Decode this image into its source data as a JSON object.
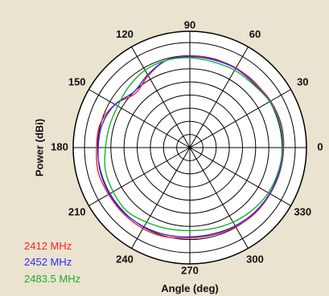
{
  "chart_data": {
    "type": "polar-line",
    "xlabel": "Angle (deg)",
    "ylabel": "Power (dBi)",
    "angle_ticks": [
      "0",
      "30",
      "60",
      "90",
      "120",
      "150",
      "180",
      "210",
      "240",
      "270",
      "300",
      "330"
    ],
    "radial_rings": 8,
    "grid": true,
    "legend_position": "bottom-left",
    "theta_deg": [
      0,
      15,
      30,
      45,
      60,
      75,
      90,
      105,
      120,
      135,
      150,
      165,
      180,
      195,
      210,
      225,
      240,
      255,
      270,
      285,
      300,
      315,
      330,
      345
    ],
    "series": [
      {
        "name": "2412 MHz",
        "color": "#ff2020",
        "r_norm": [
          0.89,
          0.895,
          0.885,
          0.87,
          0.875,
          0.87,
          0.87,
          0.86,
          0.79,
          0.73,
          0.82,
          0.88,
          0.885,
          0.9,
          0.89,
          0.89,
          0.89,
          0.88,
          0.86,
          0.86,
          0.87,
          0.88,
          0.88,
          0.885
        ]
      },
      {
        "name": "2452 MHz",
        "color": "#2a2aff",
        "r_norm": [
          0.885,
          0.89,
          0.88,
          0.86,
          0.87,
          0.865,
          0.865,
          0.86,
          0.8,
          0.75,
          0.82,
          0.86,
          0.87,
          0.88,
          0.88,
          0.88,
          0.87,
          0.86,
          0.85,
          0.85,
          0.86,
          0.87,
          0.875,
          0.88
        ]
      },
      {
        "name": "2483.5 MHz",
        "color": "#18b028",
        "r_norm": [
          0.88,
          0.885,
          0.875,
          0.85,
          0.85,
          0.845,
          0.855,
          0.86,
          0.85,
          0.82,
          0.79,
          0.79,
          0.8,
          0.83,
          0.84,
          0.85,
          0.82,
          0.8,
          0.79,
          0.8,
          0.82,
          0.84,
          0.86,
          0.87
        ]
      }
    ]
  }
}
